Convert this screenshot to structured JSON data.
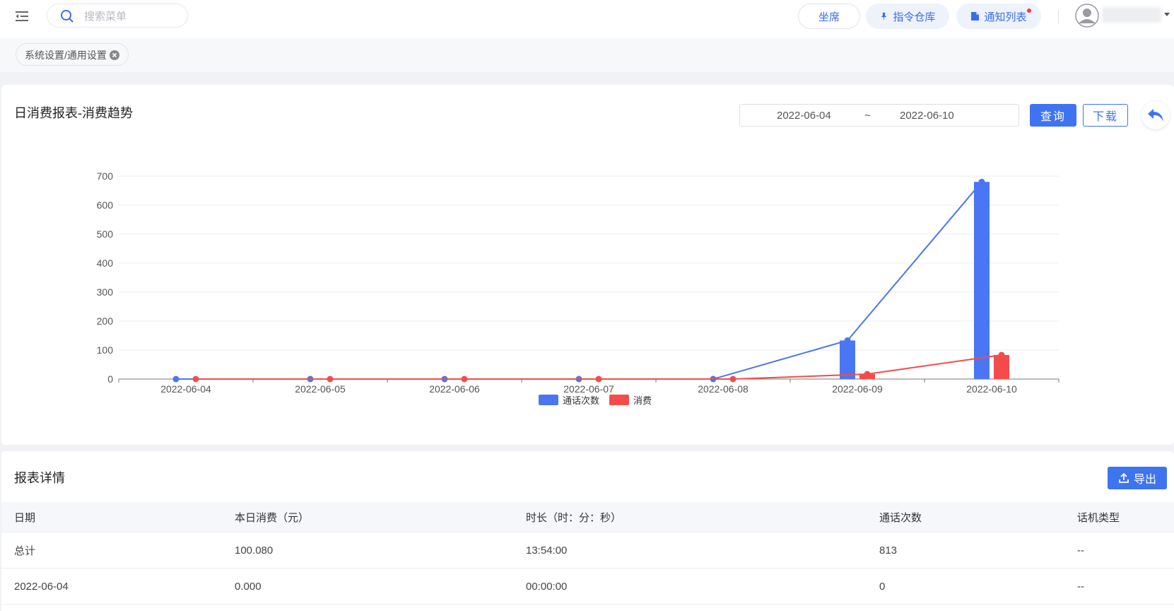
{
  "header": {
    "search_placeholder": "搜索菜单",
    "seat_label": "坐席",
    "command_label": "指令仓库",
    "notify_label": "通知列表"
  },
  "tags": [
    {
      "label": "系统设置/通用设置"
    }
  ],
  "chart_card": {
    "title": "日消费报表-消费趋势",
    "date_start": "2022-06-04",
    "date_separator": "~",
    "date_end": "2022-06-10",
    "query_label": "查询",
    "download_label": "下载"
  },
  "chart_data": {
    "type": "bar",
    "categories": [
      "2022-06-04",
      "2022-06-05",
      "2022-06-06",
      "2022-06-07",
      "2022-06-08",
      "2022-06-09",
      "2022-06-10"
    ],
    "series": [
      {
        "name": "通话次数",
        "values": [
          0,
          0,
          0,
          0,
          0,
          133,
          680
        ],
        "color": "#4a76f4"
      },
      {
        "name": "消费",
        "values": [
          0,
          0,
          0,
          0,
          0,
          17,
          83
        ],
        "color": "#f54b4b"
      }
    ],
    "overlay_lines": true,
    "ylim": [
      0,
      700
    ],
    "yticks": [
      0,
      100,
      200,
      300,
      400,
      500,
      600,
      700
    ],
    "legend_position": "bottom-center",
    "grid": true
  },
  "table_card": {
    "title": "报表详情",
    "export_label": "导出",
    "columns": [
      "日期",
      "本日消费（元）",
      "时长（时：分：秒）",
      "通话次数",
      "话机类型"
    ],
    "rows": [
      [
        "总计",
        "100.080",
        "13:54:00",
        "813",
        "--"
      ],
      [
        "2022-06-04",
        "0.000",
        "00:00:00",
        "0",
        "--"
      ]
    ]
  }
}
